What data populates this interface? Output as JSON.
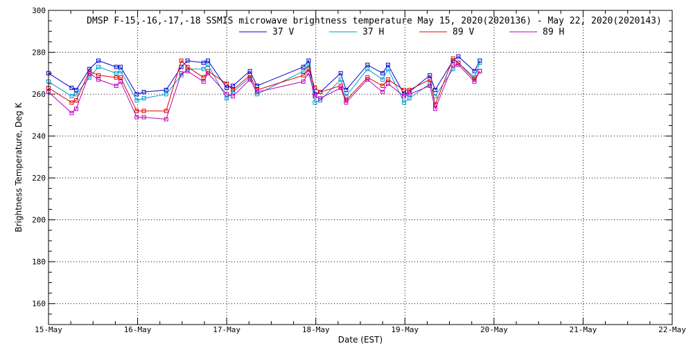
{
  "chart_data": {
    "type": "line",
    "title": "DMSP F-15,-16,-17,-18 SSMIS microwave brightness temperature May 15, 2020(2020136) - May 22, 2020(2020143)",
    "xlabel": "Date (EST)",
    "ylabel": "Brightness Temperature, Deg K",
    "x_unit": "days since 15-May 00:00",
    "xlim": [
      0,
      7
    ],
    "ylim": [
      150,
      300
    ],
    "x_ticks": [
      {
        "value": 0,
        "label": "15-May"
      },
      {
        "value": 1,
        "label": "16-May"
      },
      {
        "value": 2,
        "label": "17-May"
      },
      {
        "value": 3,
        "label": "18-May"
      },
      {
        "value": 4,
        "label": "19-May"
      },
      {
        "value": 5,
        "label": "20-May"
      },
      {
        "value": 6,
        "label": "21-May"
      },
      {
        "value": 7,
        "label": "22-May"
      }
    ],
    "y_ticks": [
      160,
      180,
      200,
      220,
      240,
      260,
      280,
      300
    ],
    "y_tick_labels": [
      "160",
      "180",
      "200",
      "220",
      "240",
      "260",
      "280",
      "300"
    ],
    "grid": "dotted",
    "legend_position": "top-center",
    "x": [
      0.0,
      0.26,
      0.31,
      0.46,
      0.56,
      0.76,
      0.81,
      0.99,
      1.07,
      1.32,
      1.49,
      1.56,
      1.74,
      1.79,
      2.0,
      2.07,
      2.26,
      2.34,
      2.86,
      2.92,
      2.99,
      3.05,
      3.28,
      3.34,
      3.58,
      3.75,
      3.81,
      3.99,
      4.05,
      4.28,
      4.34,
      4.54,
      4.6,
      4.78,
      4.84
    ],
    "series": [
      {
        "name": "37 V",
        "color": "#0000cc",
        "values": [
          270,
          263,
          262,
          272,
          276,
          273,
          273,
          260,
          261,
          262,
          273,
          276,
          275,
          276,
          263,
          264,
          271,
          264,
          273,
          276,
          260,
          261,
          270,
          262,
          274,
          270,
          274,
          260,
          261,
          269,
          262,
          276,
          278,
          271,
          276
        ]
      },
      {
        "name": "37 H",
        "color": "#0099cc",
        "values": [
          266,
          259,
          260,
          268,
          273,
          270,
          271,
          257,
          258,
          260,
          269,
          272,
          272,
          274,
          258,
          261,
          268,
          260,
          271,
          274,
          256,
          257,
          267,
          259,
          272,
          267,
          272,
          256,
          258,
          265,
          259,
          272,
          275,
          268,
          275
        ]
      },
      {
        "name": "89 V",
        "color": "#dd0000",
        "values": [
          263,
          256,
          257,
          271,
          269,
          268,
          268,
          252,
          252,
          252,
          276,
          273,
          268,
          271,
          265,
          262,
          269,
          262,
          269,
          272,
          263,
          261,
          264,
          257,
          268,
          264,
          267,
          262,
          262,
          267,
          255,
          277,
          275,
          267,
          271
        ]
      },
      {
        "name": "89 H",
        "color": "#bb00bb",
        "values": [
          261,
          251,
          253,
          270,
          267,
          264,
          266,
          249,
          249,
          248,
          270,
          271,
          266,
          270,
          260,
          259,
          267,
          261,
          266,
          270,
          259,
          258,
          263,
          256,
          267,
          261,
          265,
          259,
          260,
          264,
          253,
          274,
          274,
          266,
          271
        ]
      }
    ]
  }
}
